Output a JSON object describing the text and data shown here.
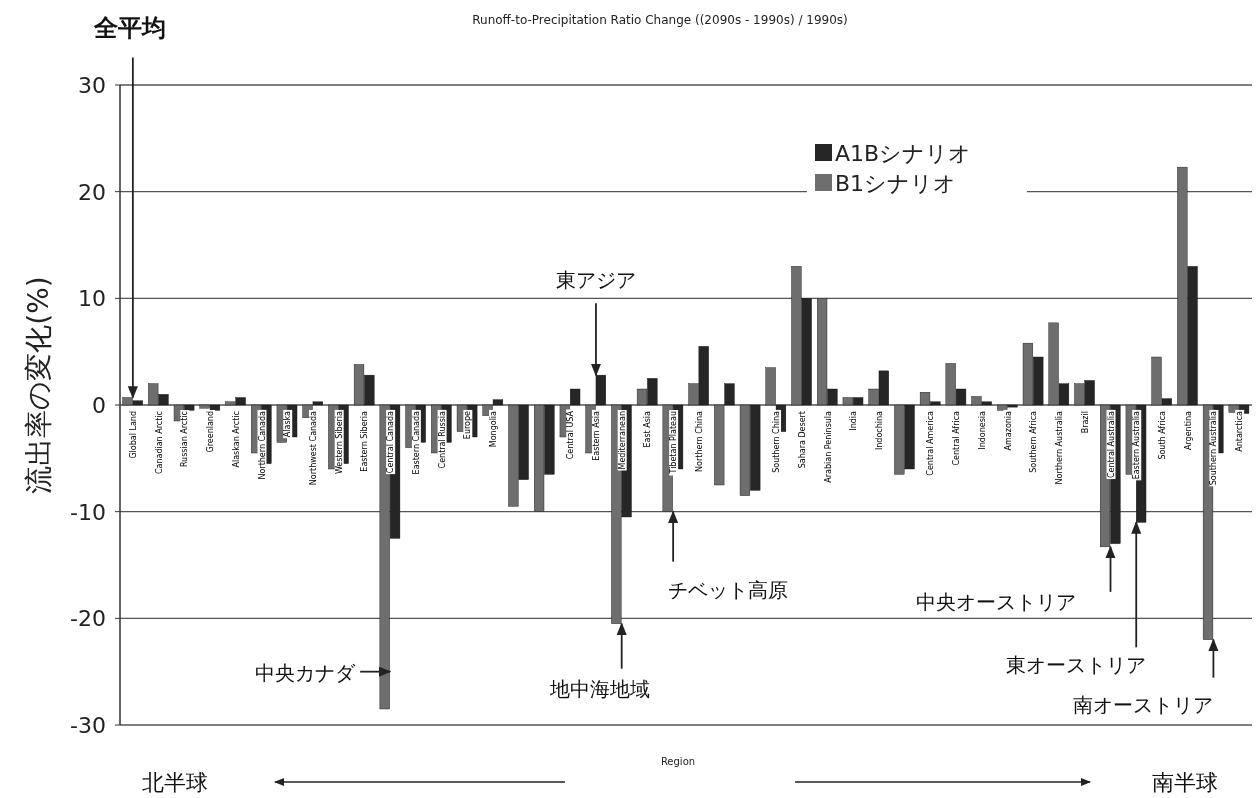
{
  "chart_data": {
    "type": "bar",
    "title": "Runoff-to-Precipitation Ratio Change ((2090s - 1990s) / 1990s)",
    "xlabel": "Region",
    "ylabel": "流出率の変化(%)",
    "categories": [
      "Global Land",
      "Canadian Arctic",
      "Russian Arctic",
      "Greenland",
      "Alaskan Arctic",
      "Northern Canada",
      "Alaska",
      "Northwest Canada",
      "Western Siberia",
      "Eastern Siberia",
      "Central Canada",
      "Eastern Canada",
      "Central Russia",
      "Europe",
      "Mongolia",
      null,
      null,
      "Central USA",
      "Eastern Asia",
      "Mediterranean",
      "East Asia",
      "Tibetan Plateau",
      "Northern China",
      null,
      null,
      "Southern China",
      "Sahara Desert",
      "Arabian Peninsula",
      "India",
      "Indochina",
      null,
      "Central America",
      "Central Africa",
      "Indonesia",
      "Amazonia",
      "Southern Africa",
      "Northern Australia",
      "Brazil",
      "Central Australia",
      "Eastern Australia",
      "South Africa",
      "Argentina",
      "Southern Australia",
      "Antarctica"
    ],
    "series": [
      {
        "name": "A1Bシナリオ",
        "color": "#262626",
        "values": [
          0.4,
          1.0,
          -0.5,
          -0.5,
          0.7,
          -5.5,
          -3,
          0.3,
          -5.5,
          2.8,
          -12.5,
          -3.5,
          -3.5,
          -3,
          0.5,
          -7,
          -6.5,
          1.5,
          2.8,
          -10.5,
          2.5,
          -6,
          5.5,
          2,
          -8,
          -2.5,
          10,
          1.5,
          0.7,
          3.2,
          -6,
          0.3,
          1.5,
          0.3,
          -0.2,
          4.5,
          2,
          2.3,
          -13,
          -11,
          0.6,
          13,
          -4.5,
          -0.8
        ]
      },
      {
        "name": "B1シナリオ",
        "color": "#6e6e6e",
        "values": [
          0.7,
          2,
          -1.5,
          -0.3,
          0.3,
          -4.5,
          -3.5,
          -1.2,
          -6,
          3.8,
          -28.5,
          -4,
          -4.5,
          -2.5,
          -1,
          -9.5,
          -10,
          -3,
          -4.5,
          -20.5,
          1.5,
          -10,
          2,
          -7.5,
          -8.5,
          3.5,
          13,
          10,
          0.7,
          1.5,
          -6.5,
          1.2,
          3.9,
          0.8,
          -0.5,
          5.8,
          7.7,
          2,
          -13.3,
          -6.5,
          4.5,
          22.3,
          -22,
          -0.7
        ]
      }
    ],
    "ylim": [
      -30,
      30
    ],
    "yticks": [
      -30,
      -20,
      -10,
      0,
      10,
      20,
      30
    ],
    "grid": "y",
    "legend": "top right",
    "annotations": [
      {
        "text": "全平均",
        "x": "Global Land",
        "y": 0.7
      },
      {
        "text": "東アジア",
        "x": "Eastern Asia",
        "y": 2.8
      },
      {
        "text": "チベット高原",
        "x": "Tibetan Plateau",
        "y": -10
      },
      {
        "text": "中央カナダ",
        "x": "Central Canada",
        "y": -25
      },
      {
        "text": "地中海地域",
        "x": "Mediterranean",
        "y": -20.5
      },
      {
        "text": "中央オーストリア",
        "x": "Central Australia",
        "y": -13.3
      },
      {
        "text": "東オーストリア",
        "x": "Eastern Australia",
        "y": -11
      },
      {
        "text": "南オーストリア",
        "x": "Southern Australia",
        "y": -22
      },
      "北半球",
      "南半球"
    ]
  }
}
